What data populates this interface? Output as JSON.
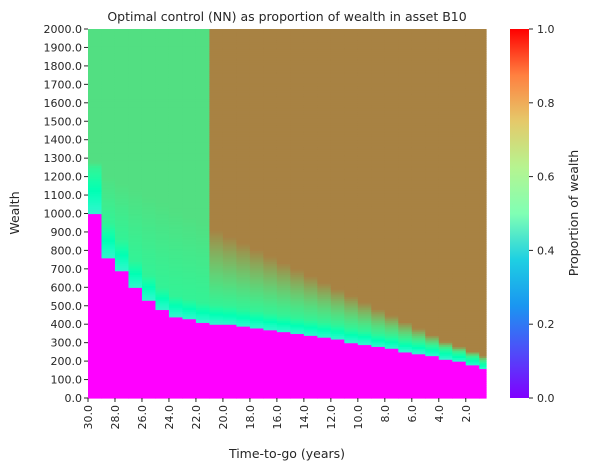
{
  "chart_data": {
    "type": "heatmap",
    "title": "Optimal control (NN) as proportion of wealth in asset B10",
    "xlabel": "Time-to-go (years)",
    "ylabel": "Wealth",
    "colorbar_label": "Proportion of wealth",
    "colormap": "rainbow",
    "x_tick_labels": [
      "30.0",
      "28.0",
      "26.0",
      "24.0",
      "22.0",
      "20.0",
      "18.0",
      "16.0",
      "14.0",
      "12.0",
      "10.0",
      "8.0",
      "6.0",
      "4.0",
      "2.0"
    ],
    "y_tick_labels": [
      "0.0",
      "100.0",
      "200.0",
      "300.0",
      "400.0",
      "500.0",
      "600.0",
      "700.0",
      "800.0",
      "900.0",
      "1000.0",
      "1100.0",
      "1200.0",
      "1300.0",
      "1400.0",
      "1500.0",
      "1600.0",
      "1700.0",
      "1800.0",
      "1900.0",
      "2000.0"
    ],
    "colorbar_ticks": [
      "0.0",
      "0.2",
      "0.4",
      "0.6",
      "0.8",
      "1.0"
    ],
    "colorbar_range": [
      0.0,
      1.0
    ],
    "x_range": [
      30.0,
      0.5
    ],
    "y_range": [
      0.0,
      2000.0
    ],
    "time_step_years": 1.0,
    "zero_allocation_boundary": {
      "time_to_go": [
        30,
        29,
        28,
        27,
        26,
        25,
        24,
        23,
        22,
        21,
        20,
        19,
        18,
        17,
        16,
        15,
        14,
        13,
        12,
        11,
        10,
        9,
        8,
        7,
        6,
        5,
        4,
        3,
        2,
        1
      ],
      "wealth": [
        1000,
        760,
        690,
        600,
        535,
        480,
        445,
        430,
        415,
        405,
        400,
        390,
        380,
        370,
        360,
        350,
        340,
        330,
        320,
        305,
        295,
        280,
        270,
        255,
        245,
        230,
        215,
        200,
        180,
        160
      ]
    },
    "regions": [
      {
        "description": "zero allocation below boundary",
        "value": 0.0
      },
      {
        "description": "high-wealth plateau, time-to-go >= 22",
        "value": 0.66
      },
      {
        "description": "high-wealth plateau, time-to-go < 22",
        "value": 0.83
      }
    ]
  }
}
